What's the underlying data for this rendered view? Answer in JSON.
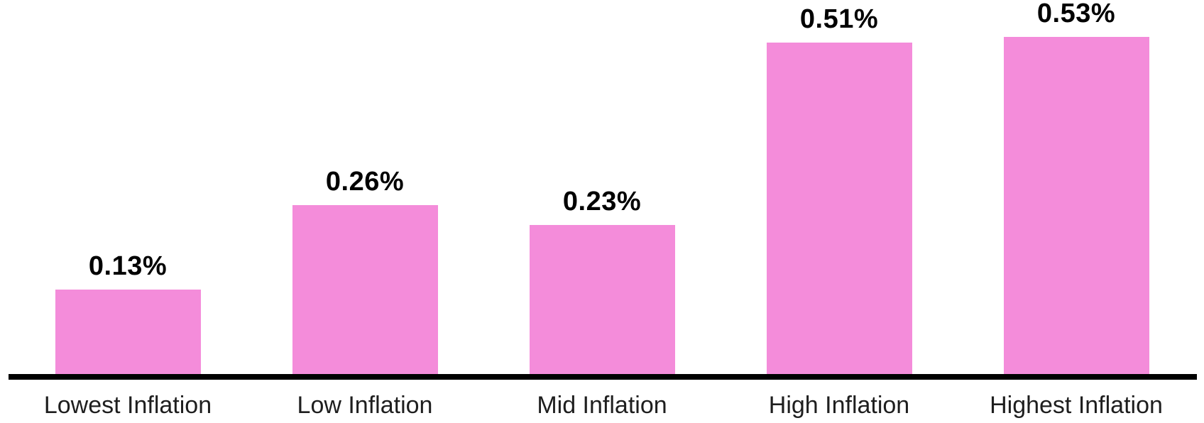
{
  "chart_data": {
    "type": "bar",
    "title": "",
    "xlabel": "",
    "ylabel": "",
    "categories": [
      "Lowest Inflation",
      "Low Inflation",
      "Mid Inflation",
      "High Inflation",
      "Highest Inflation"
    ],
    "values": [
      0.13,
      0.26,
      0.23,
      0.51,
      0.53
    ],
    "value_labels": [
      "0.13%",
      "0.26%",
      "0.23%",
      "0.51%",
      "0.53%"
    ],
    "unit": "%",
    "ylim": [
      0,
      0.576
    ],
    "grid": false,
    "legend": null,
    "axis_ticks_visible": false,
    "colors": {
      "bar": "#F48CDA",
      "axis_line": "#000000",
      "value_label": "#000000",
      "category_label": "#1E1E1E",
      "background": "#FFFFFF"
    }
  }
}
